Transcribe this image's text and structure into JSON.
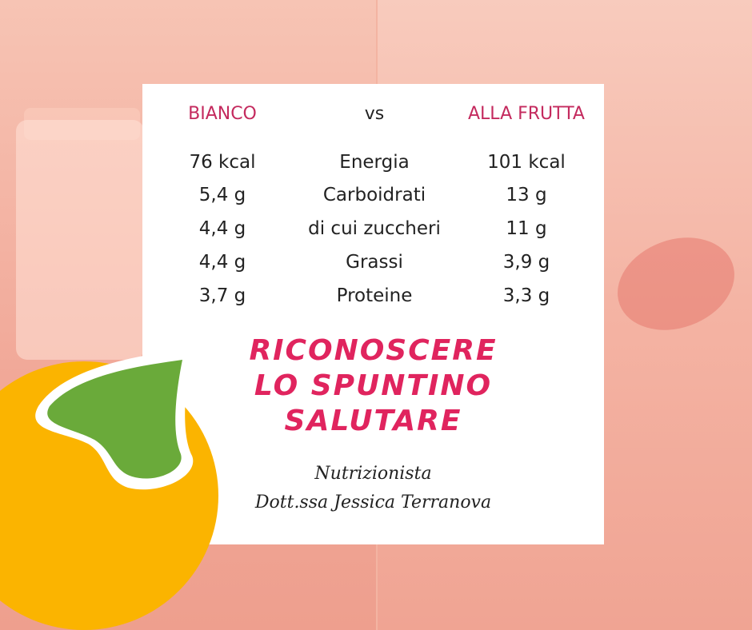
{
  "header": {
    "left": "BIANCO",
    "middle": "vs",
    "right": "ALLA FRUTTA"
  },
  "rows": [
    {
      "left": "76 kcal",
      "label": "Energia",
      "right": "101 kcal"
    },
    {
      "left": "5,4 g",
      "label": "Carboidrati",
      "right": "13 g"
    },
    {
      "left": "4,4 g",
      "label": "di cui zuccheri",
      "right": "11 g"
    },
    {
      "left": "4,4 g",
      "label": "Grassi",
      "right": "3,9 g"
    },
    {
      "left": "3,7 g",
      "label": "Proteine",
      "right": "3,3 g"
    }
  ],
  "headline": [
    "RICONOSCERE",
    "LO SPUNTINO",
    "SALUTARE"
  ],
  "author": {
    "role": "Nutrizionista",
    "name": "Dott.ssa Jessica Terranova"
  },
  "colors": {
    "accent": "#e0245e",
    "orange": "#fbb400",
    "green": "#6aaa3a",
    "background": "#f3b4a2"
  }
}
